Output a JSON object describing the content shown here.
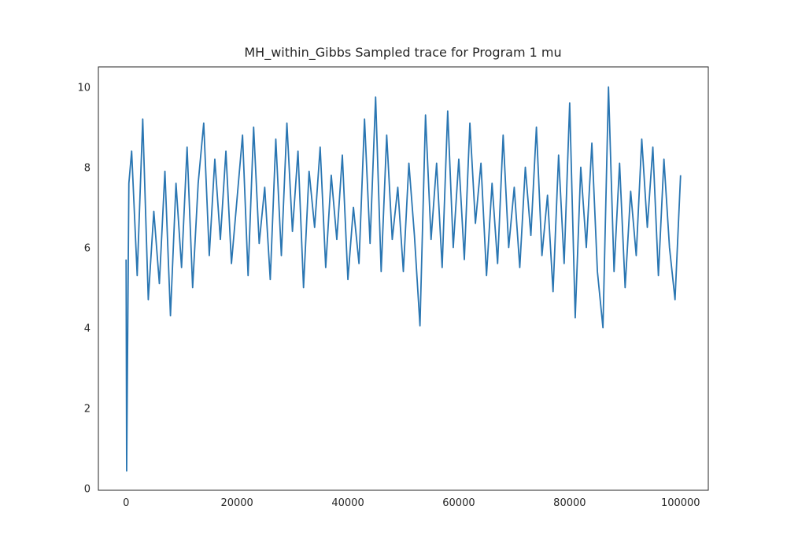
{
  "chart_data": {
    "type": "line",
    "title": "MH_within_Gibbs Sampled trace for Program 1 mu",
    "x": [
      0,
      100,
      500,
      1000,
      2000,
      3000,
      4000,
      5000,
      6000,
      7000,
      8000,
      9000,
      10000,
      11000,
      12000,
      13000,
      14000,
      15000,
      16000,
      17000,
      18000,
      19000,
      20000,
      21000,
      22000,
      23000,
      24000,
      25000,
      26000,
      27000,
      28000,
      29000,
      30000,
      31000,
      32000,
      33000,
      34000,
      35000,
      36000,
      37000,
      38000,
      39000,
      40000,
      41000,
      42000,
      43000,
      44000,
      45000,
      46000,
      47000,
      48000,
      49000,
      50000,
      51000,
      52000,
      53000,
      54000,
      55000,
      56000,
      57000,
      58000,
      59000,
      60000,
      61000,
      62000,
      63000,
      64000,
      65000,
      66000,
      67000,
      68000,
      69000,
      70000,
      71000,
      72000,
      73000,
      74000,
      75000,
      76000,
      77000,
      78000,
      79000,
      80000,
      81000,
      82000,
      83000,
      84000,
      85000,
      86000,
      87000,
      88000,
      89000,
      90000,
      91000,
      92000,
      93000,
      94000,
      95000,
      96000,
      97000,
      98000,
      99000,
      100000
    ],
    "series": [
      {
        "color": "#2a76b2",
        "values": [
          5.7,
          0.43,
          7.6,
          8.4,
          5.3,
          9.2,
          4.7,
          6.9,
          5.1,
          7.9,
          4.3,
          7.6,
          5.5,
          8.5,
          5.0,
          7.6,
          9.1,
          5.8,
          8.2,
          6.2,
          8.4,
          5.6,
          7.2,
          8.8,
          5.3,
          9.0,
          6.1,
          7.5,
          5.2,
          8.7,
          5.8,
          9.1,
          6.4,
          8.4,
          5.0,
          7.9,
          6.5,
          8.5,
          5.5,
          7.8,
          6.2,
          8.3,
          5.2,
          7.0,
          5.6,
          9.2,
          6.1,
          9.75,
          5.4,
          8.8,
          6.2,
          7.5,
          5.4,
          8.1,
          6.3,
          4.05,
          9.3,
          6.2,
          8.1,
          5.5,
          9.4,
          6.0,
          8.2,
          5.7,
          9.1,
          6.6,
          8.1,
          5.3,
          7.6,
          5.6,
          8.8,
          6.0,
          7.5,
          5.5,
          8.0,
          6.3,
          9.0,
          5.8,
          7.3,
          4.9,
          8.3,
          5.6,
          9.6,
          4.25,
          8.0,
          6.0,
          8.6,
          5.4,
          4.0,
          10.0,
          5.4,
          8.1,
          5.0,
          7.4,
          5.8,
          8.7,
          6.5,
          8.5,
          5.3,
          8.2,
          6.0,
          4.7,
          7.8
        ]
      }
    ],
    "xlim": [
      -5000,
      105000
    ],
    "ylim": [
      -0.05,
      10.5
    ],
    "xticks": [
      0,
      20000,
      40000,
      60000,
      80000,
      100000
    ],
    "yticks": [
      0,
      2,
      4,
      6,
      8,
      10
    ],
    "grid": false
  }
}
